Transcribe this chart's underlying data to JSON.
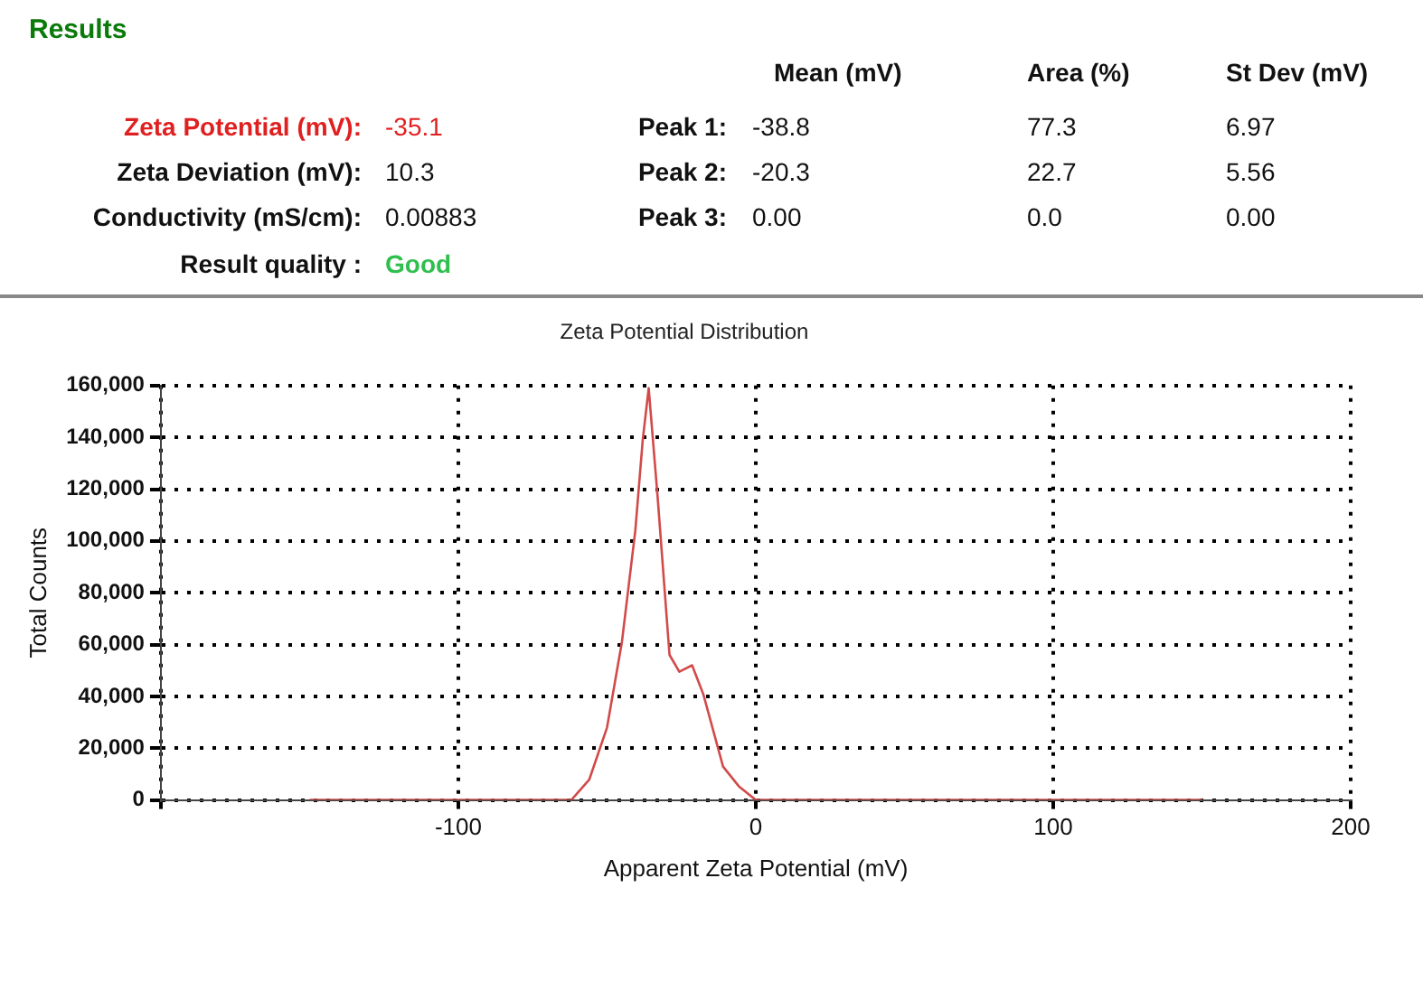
{
  "chart_data": {
    "type": "line",
    "title": "Zeta Potential Distribution",
    "xlabel": "Apparent Zeta Potential (mV)",
    "ylabel": "Total Counts",
    "x": [
      -150,
      -62,
      -56,
      -50,
      -45,
      -40.5,
      -38,
      -36,
      -33,
      -29,
      -25.7,
      -21.4,
      -17.6,
      -11,
      -5.7,
      0,
      150
    ],
    "series": [
      {
        "color": "#d24a4a",
        "values": [
          0,
          0,
          7800,
          28000,
          61000,
          104000,
          139000,
          159000,
          117000,
          56000,
          49500,
          52000,
          40700,
          12900,
          5300,
          0,
          0
        ]
      }
    ],
    "xlim": [
      -200,
      200
    ],
    "xticks": [
      {
        "value": -200,
        "label": null
      },
      -100,
      0,
      100,
      200
    ],
    "ylim": [
      0,
      160000
    ],
    "yticks": [
      0,
      {
        "value": 20000,
        "label": "20,000"
      },
      {
        "value": 40000,
        "label": "40,000"
      },
      {
        "value": 60000,
        "label": "60,000"
      },
      {
        "value": 80000,
        "label": "80,000"
      },
      {
        "value": 100000,
        "label": "100,000"
      },
      {
        "value": 120000,
        "label": "120,000"
      },
      {
        "value": 140000,
        "label": "140,000"
      },
      {
        "value": 160000,
        "label": "160,000"
      }
    ],
    "grid": true,
    "legend": false,
    "marker": "none",
    "line_style": "solid",
    "annotations": [
      "Results",
      "Mean (mV)",
      "Area (%)",
      "St Dev (mV)",
      "Zeta Potential (mV):",
      "-35.1",
      "Peak 1:",
      "-38.8",
      "77.3",
      "6.97",
      "Zeta Deviation (mV):",
      "10.3",
      "Peak 2:",
      "-20.3",
      "22.7",
      "5.56",
      "Conductivity (mS/cm):",
      "0.00883",
      "Peak 3:",
      "0.00",
      "0.0",
      "0.00",
      "Result quality :",
      "Good"
    ]
  }
}
